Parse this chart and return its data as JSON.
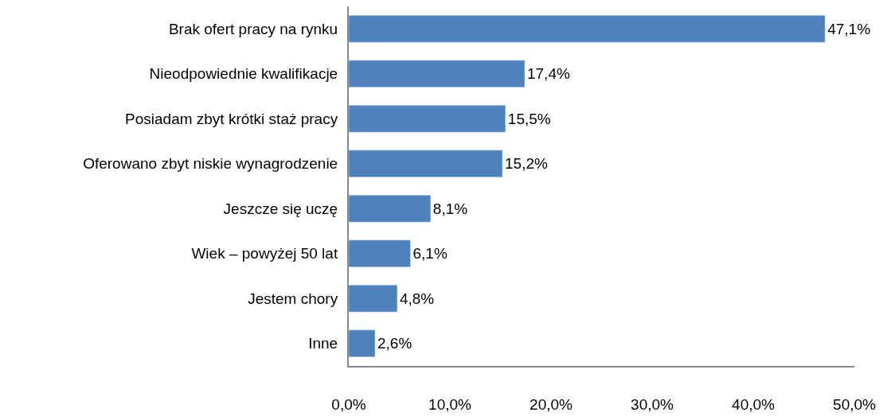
{
  "chart_data": {
    "type": "bar",
    "orientation": "horizontal",
    "color": "#4f81bd",
    "categories": [
      "Brak ofert pracy na rynku",
      "Nieodpowiednie kwalifikacje",
      "Posiadam zbyt krótki staż pracy",
      "Oferowano zbyt niskie wynagrodzenie",
      "Jeszcze się uczę",
      "Wiek – powyżej 50 lat",
      "Jestem chory",
      "Inne"
    ],
    "values": [
      47.1,
      17.4,
      15.5,
      15.2,
      8.1,
      6.1,
      4.8,
      2.6
    ],
    "value_labels": [
      "47,1%",
      "17,4%",
      "15,5%",
      "15,2%",
      "8,1%",
      "6,1%",
      "4,8%",
      "2,6%"
    ],
    "xlim": [
      0,
      50
    ],
    "xticks": [
      {
        "value": 0,
        "label": "0,0%"
      },
      {
        "value": 10,
        "label": "10,0%"
      },
      {
        "value": 20,
        "label": "20,0%"
      },
      {
        "value": 30,
        "label": "30,0%"
      },
      {
        "value": 40,
        "label": "40,0%"
      },
      {
        "value": 50,
        "label": "50,0%"
      }
    ],
    "legend": false
  }
}
